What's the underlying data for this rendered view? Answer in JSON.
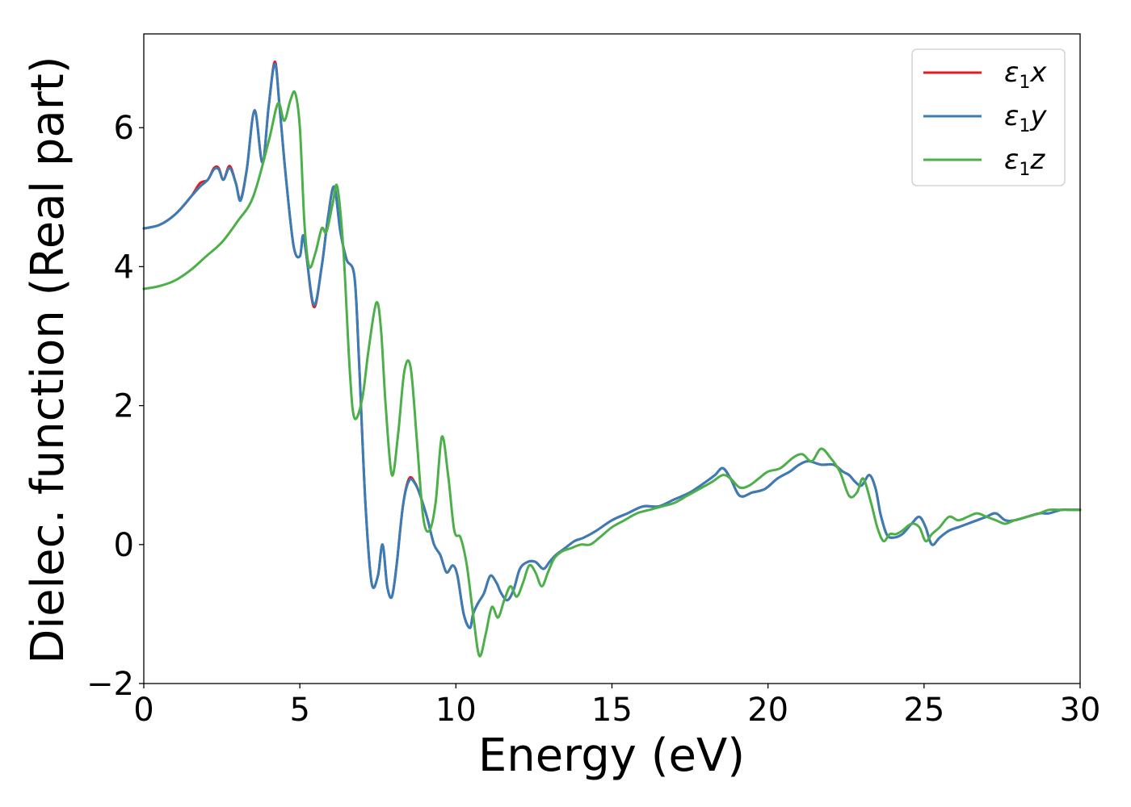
{
  "chart_data": {
    "type": "line",
    "title": "",
    "xlabel": "Energy (eV)",
    "ylabel": "Dielec. function (Real part)",
    "xlim": [
      0,
      30
    ],
    "ylim": [
      -2,
      7.35
    ],
    "xticks": [
      0,
      5,
      10,
      15,
      20,
      25,
      30
    ],
    "yticks": [
      -2,
      0,
      2,
      4,
      6
    ],
    "grid": false,
    "legend_position": "top-right",
    "series": [
      {
        "name": "ε₁x",
        "legend_base": "ε",
        "legend_sub": "1",
        "legend_var": "x",
        "color": "#e41a1c",
        "x": [
          0,
          0.5,
          1.0,
          1.5,
          1.8,
          2.05,
          2.25,
          2.4,
          2.55,
          2.75,
          2.95,
          3.1,
          3.3,
          3.55,
          3.8,
          4.0,
          4.2,
          4.35,
          4.55,
          4.8,
          5.0,
          5.1,
          5.2,
          5.45,
          5.7,
          5.9,
          6.1,
          6.3,
          6.5,
          6.75,
          6.9,
          7.1,
          7.3,
          7.5,
          7.65,
          7.8,
          7.95,
          8.1,
          8.3,
          8.5,
          8.7,
          8.9,
          9.1,
          9.3,
          9.5,
          9.7,
          9.9,
          10.05,
          10.25,
          10.45,
          10.55,
          10.7,
          10.9,
          11.1,
          11.3,
          11.45,
          11.65,
          11.85,
          12.05,
          12.3,
          12.55,
          12.8,
          13.0,
          13.2,
          13.5,
          13.8,
          14.1,
          14.5,
          15.0,
          15.5,
          16.0,
          16.5,
          17.0,
          17.5,
          18.0,
          18.3,
          18.55,
          18.8,
          19.1,
          19.5,
          19.9,
          20.3,
          20.7,
          21.0,
          21.3,
          21.7,
          22.1,
          22.4,
          22.6,
          22.8,
          23.0,
          23.25,
          23.45,
          23.6,
          23.8,
          24.0,
          24.3,
          24.6,
          24.85,
          25.05,
          25.25,
          25.5,
          25.8,
          26.1,
          26.4,
          26.7,
          27.0,
          27.3,
          27.6,
          27.9,
          28.3,
          28.7,
          29.0,
          29.4,
          29.7,
          30.0
        ],
        "y": [
          4.55,
          4.6,
          4.75,
          5.0,
          5.2,
          5.25,
          5.42,
          5.42,
          5.25,
          5.45,
          5.2,
          4.97,
          5.4,
          6.25,
          5.5,
          6.3,
          6.95,
          6.3,
          5.3,
          4.3,
          4.15,
          4.45,
          4.2,
          3.42,
          4.0,
          4.7,
          5.15,
          4.5,
          4.1,
          3.85,
          2.6,
          0.6,
          -0.55,
          -0.45,
          0.0,
          -0.6,
          -0.75,
          -0.3,
          0.55,
          0.95,
          0.88,
          0.65,
          0.35,
          0.0,
          -0.15,
          -0.4,
          -0.3,
          -0.45,
          -1.0,
          -1.2,
          -1.0,
          -0.85,
          -0.7,
          -0.45,
          -0.55,
          -0.7,
          -0.8,
          -0.65,
          -0.35,
          -0.25,
          -0.25,
          -0.35,
          -0.25,
          -0.15,
          -0.05,
          0.05,
          0.1,
          0.2,
          0.35,
          0.45,
          0.55,
          0.55,
          0.65,
          0.75,
          0.9,
          1.0,
          1.1,
          0.95,
          0.7,
          0.75,
          0.8,
          0.95,
          1.05,
          1.15,
          1.2,
          1.15,
          1.15,
          1.05,
          1.0,
          0.9,
          0.85,
          1.0,
          0.8,
          0.45,
          0.15,
          0.1,
          0.15,
          0.3,
          0.4,
          0.25,
          0.0,
          0.1,
          0.2,
          0.25,
          0.3,
          0.35,
          0.4,
          0.45,
          0.35,
          0.35,
          0.4,
          0.45,
          0.45,
          0.5,
          0.5,
          0.5
        ]
      },
      {
        "name": "ε₁y",
        "legend_base": "ε",
        "legend_sub": "1",
        "legend_var": "y",
        "color": "#377eb8",
        "x": [
          0,
          0.5,
          1.0,
          1.5,
          1.8,
          2.05,
          2.25,
          2.4,
          2.55,
          2.75,
          2.95,
          3.1,
          3.3,
          3.55,
          3.8,
          4.0,
          4.2,
          4.35,
          4.55,
          4.8,
          5.0,
          5.1,
          5.2,
          5.45,
          5.7,
          5.9,
          6.1,
          6.3,
          6.5,
          6.75,
          6.9,
          7.1,
          7.3,
          7.5,
          7.65,
          7.8,
          7.95,
          8.1,
          8.3,
          8.5,
          8.7,
          8.9,
          9.1,
          9.3,
          9.5,
          9.7,
          9.9,
          10.05,
          10.25,
          10.45,
          10.55,
          10.7,
          10.9,
          11.1,
          11.3,
          11.45,
          11.65,
          11.85,
          12.05,
          12.3,
          12.55,
          12.8,
          13.0,
          13.2,
          13.5,
          13.8,
          14.1,
          14.5,
          15.0,
          15.5,
          16.0,
          16.5,
          17.0,
          17.5,
          18.0,
          18.3,
          18.55,
          18.8,
          19.1,
          19.5,
          19.9,
          20.3,
          20.7,
          21.0,
          21.3,
          21.7,
          22.1,
          22.4,
          22.6,
          22.8,
          23.0,
          23.25,
          23.45,
          23.6,
          23.8,
          24.0,
          24.3,
          24.6,
          24.85,
          25.05,
          25.25,
          25.5,
          25.8,
          26.1,
          26.4,
          26.7,
          27.0,
          27.3,
          27.6,
          27.9,
          28.3,
          28.7,
          29.0,
          29.4,
          29.7,
          30.0
        ],
        "y": [
          4.55,
          4.6,
          4.75,
          5.0,
          5.15,
          5.25,
          5.4,
          5.4,
          5.25,
          5.42,
          5.2,
          4.95,
          5.4,
          6.25,
          5.5,
          6.3,
          6.92,
          6.3,
          5.3,
          4.3,
          4.15,
          4.45,
          4.2,
          3.45,
          4.0,
          4.7,
          5.15,
          4.5,
          4.1,
          3.85,
          2.6,
          0.6,
          -0.55,
          -0.45,
          0.0,
          -0.6,
          -0.75,
          -0.3,
          0.55,
          0.92,
          0.87,
          0.65,
          0.35,
          0.0,
          -0.15,
          -0.4,
          -0.3,
          -0.45,
          -1.0,
          -1.2,
          -1.0,
          -0.85,
          -0.7,
          -0.45,
          -0.55,
          -0.7,
          -0.8,
          -0.65,
          -0.35,
          -0.25,
          -0.25,
          -0.35,
          -0.25,
          -0.15,
          -0.05,
          0.05,
          0.1,
          0.2,
          0.35,
          0.45,
          0.55,
          0.55,
          0.65,
          0.75,
          0.9,
          1.0,
          1.1,
          0.95,
          0.7,
          0.75,
          0.8,
          0.95,
          1.05,
          1.15,
          1.2,
          1.15,
          1.15,
          1.05,
          1.0,
          0.9,
          0.85,
          1.0,
          0.8,
          0.45,
          0.15,
          0.1,
          0.15,
          0.3,
          0.4,
          0.25,
          0.0,
          0.1,
          0.2,
          0.25,
          0.3,
          0.35,
          0.4,
          0.45,
          0.35,
          0.35,
          0.4,
          0.45,
          0.45,
          0.5,
          0.5,
          0.5
        ]
      },
      {
        "name": "ε₁z",
        "legend_base": "ε",
        "legend_sub": "1",
        "legend_var": "z",
        "color": "#4daf4a",
        "x": [
          0,
          0.5,
          1.0,
          1.5,
          2.0,
          2.5,
          3.0,
          3.5,
          4.0,
          4.3,
          4.5,
          4.7,
          4.85,
          5.0,
          5.15,
          5.3,
          5.5,
          5.7,
          5.85,
          6.05,
          6.2,
          6.4,
          6.6,
          6.75,
          7.0,
          7.2,
          7.45,
          7.6,
          7.75,
          7.95,
          8.15,
          8.35,
          8.55,
          8.75,
          8.95,
          9.15,
          9.35,
          9.55,
          9.75,
          9.95,
          10.15,
          10.35,
          10.55,
          10.75,
          10.95,
          11.15,
          11.35,
          11.55,
          11.75,
          11.95,
          12.15,
          12.35,
          12.55,
          12.75,
          12.95,
          13.15,
          13.4,
          13.7,
          14.0,
          14.3,
          14.6,
          15.0,
          15.4,
          15.8,
          16.2,
          16.6,
          17.0,
          17.4,
          17.8,
          18.2,
          18.55,
          18.8,
          19.1,
          19.4,
          19.7,
          20.0,
          20.4,
          20.8,
          21.1,
          21.4,
          21.7,
          22.0,
          22.3,
          22.6,
          22.85,
          23.05,
          23.3,
          23.5,
          23.7,
          23.9,
          24.1,
          24.3,
          24.6,
          24.85,
          25.05,
          25.25,
          25.5,
          25.8,
          26.1,
          26.4,
          26.7,
          27.0,
          27.3,
          27.6,
          27.9,
          28.3,
          28.7,
          29.0,
          29.4,
          29.7,
          30.0
        ],
        "y": [
          3.68,
          3.72,
          3.8,
          3.95,
          4.15,
          4.35,
          4.65,
          5.0,
          5.8,
          6.35,
          6.1,
          6.4,
          6.5,
          6.0,
          4.6,
          4.0,
          4.2,
          4.55,
          4.5,
          4.9,
          5.15,
          4.2,
          2.5,
          1.82,
          2.1,
          2.8,
          3.48,
          3.1,
          2.0,
          1.0,
          1.6,
          2.5,
          2.55,
          1.5,
          0.4,
          0.2,
          0.6,
          1.55,
          1.0,
          0.2,
          0.1,
          -0.3,
          -1.0,
          -1.6,
          -1.3,
          -0.9,
          -1.05,
          -0.8,
          -0.6,
          -0.75,
          -0.55,
          -0.3,
          -0.4,
          -0.6,
          -0.4,
          -0.2,
          -0.1,
          -0.05,
          0.0,
          0.0,
          0.1,
          0.25,
          0.35,
          0.45,
          0.5,
          0.55,
          0.6,
          0.7,
          0.8,
          0.9,
          1.0,
          0.95,
          0.82,
          0.85,
          0.95,
          1.05,
          1.1,
          1.25,
          1.3,
          1.2,
          1.38,
          1.25,
          1.05,
          0.7,
          0.75,
          0.95,
          0.6,
          0.25,
          0.05,
          0.15,
          0.15,
          0.2,
          0.3,
          0.25,
          0.05,
          0.15,
          0.25,
          0.4,
          0.35,
          0.4,
          0.45,
          0.4,
          0.35,
          0.3,
          0.35,
          0.4,
          0.45,
          0.5,
          0.5,
          0.5,
          0.5
        ]
      }
    ]
  }
}
